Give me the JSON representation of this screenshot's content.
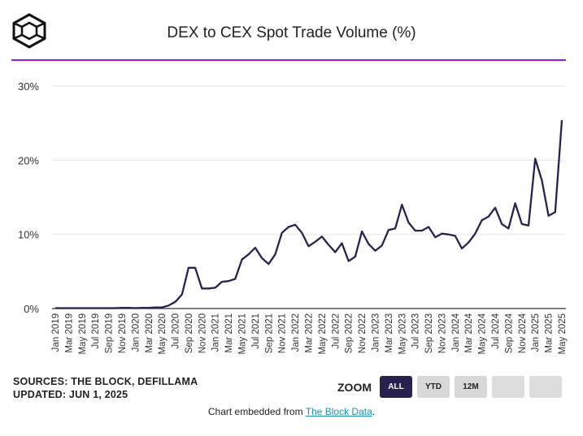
{
  "title": "DEX to CEX Spot Trade Volume (%)",
  "logo": {
    "icon": "the-block-logo-icon"
  },
  "footer": {
    "sources": "SOURCES: THE BLOCK, DEFILLAMA",
    "updated": "UPDATED: JUN 1, 2025",
    "zoom_label": "ZOOM",
    "zoom_buttons": [
      "ALL",
      "YTD",
      "12M",
      "",
      ""
    ],
    "embed_prefix": "Chart embedded from ",
    "embed_link": "The Block Data",
    "embed_suffix": "."
  },
  "colors": {
    "line": "#2a2150",
    "accent": "#9b1ed6",
    "grid": "#e6e6e6"
  },
  "chart_data": {
    "type": "line",
    "title": "DEX to CEX Spot Trade Volume (%)",
    "xlabel": "",
    "ylabel": "",
    "ylim": [
      0,
      30
    ],
    "yticks": [
      0,
      10,
      20,
      30
    ],
    "ytick_labels": [
      "0%",
      "10%",
      "20%",
      "30%"
    ],
    "xtick_labels": [
      "Jan 2019",
      "Mar 2019",
      "May 2019",
      "Jul 2019",
      "Sep 2019",
      "Nov 2019",
      "Jan 2020",
      "Mar 2020",
      "May 2020",
      "Jul 2020",
      "Sep 2020",
      "Nov 2020",
      "Jan 2021",
      "Mar 2021",
      "May 2021",
      "Jul 2021",
      "Sep 2021",
      "Nov 2021",
      "Jan 2022",
      "Mar 2022",
      "May 2022",
      "Jul 2022",
      "Sep 2022",
      "Nov 2022",
      "Jan 2023",
      "Mar 2023",
      "May 2023",
      "Jul 2023",
      "Sep 2023",
      "Nov 2023",
      "Jan 2024",
      "Mar 2024",
      "May 2024",
      "Jul 2024",
      "Sep 2024",
      "Nov 2024",
      "Jan 2025",
      "Mar 2025",
      "May 2025"
    ],
    "series": [
      {
        "name": "DEX to CEX Spot Trade Volume (%)",
        "x": [
          "Jan 2019",
          "Feb 2019",
          "Mar 2019",
          "Apr 2019",
          "May 2019",
          "Jun 2019",
          "Jul 2019",
          "Aug 2019",
          "Sep 2019",
          "Oct 2019",
          "Nov 2019",
          "Dec 2019",
          "Jan 2020",
          "Feb 2020",
          "Mar 2020",
          "Apr 2020",
          "May 2020",
          "Jun 2020",
          "Jul 2020",
          "Aug 2020",
          "Sep 2020",
          "Oct 2020",
          "Nov 2020",
          "Dec 2020",
          "Jan 2021",
          "Feb 2021",
          "Mar 2021",
          "Apr 2021",
          "May 2021",
          "Jun 2021",
          "Jul 2021",
          "Aug 2021",
          "Sep 2021",
          "Oct 2021",
          "Nov 2021",
          "Dec 2021",
          "Jan 2022",
          "Feb 2022",
          "Mar 2022",
          "Apr 2022",
          "May 2022",
          "Jun 2022",
          "Jul 2022",
          "Aug 2022",
          "Sep 2022",
          "Oct 2022",
          "Nov 2022",
          "Dec 2022",
          "Jan 2023",
          "Feb 2023",
          "Mar 2023",
          "Apr 2023",
          "May 2023",
          "Jun 2023",
          "Jul 2023",
          "Aug 2023",
          "Sep 2023",
          "Oct 2023",
          "Nov 2023",
          "Dec 2023",
          "Jan 2024",
          "Feb 2024",
          "Mar 2024",
          "Apr 2024",
          "May 2024",
          "Jun 2024",
          "Jul 2024",
          "Aug 2024",
          "Sep 2024",
          "Oct 2024",
          "Nov 2024",
          "Dec 2024",
          "Jan 2025",
          "Feb 2025",
          "Mar 2025",
          "Apr 2025",
          "May 2025"
        ],
        "values": [
          0.05,
          0.05,
          0.05,
          0.05,
          0.05,
          0.05,
          0.05,
          0.05,
          0.05,
          0.05,
          0.1,
          0.1,
          0.05,
          0.1,
          0.1,
          0.15,
          0.15,
          0.4,
          0.9,
          1.9,
          5.5,
          5.5,
          2.7,
          2.7,
          2.8,
          3.6,
          3.7,
          4.0,
          6.6,
          7.3,
          8.2,
          6.8,
          6.0,
          7.3,
          10.2,
          11.0,
          11.3,
          10.2,
          8.4,
          9.0,
          9.7,
          8.6,
          7.6,
          8.8,
          6.4,
          7.0,
          10.4,
          8.7,
          7.8,
          8.5,
          10.6,
          10.8,
          14.0,
          11.6,
          10.5,
          10.5,
          11.0,
          9.6,
          10.1,
          10.0,
          9.8,
          8.1,
          8.9,
          10.1,
          11.9,
          12.4,
          13.6,
          11.4,
          10.8,
          14.2,
          11.4,
          11.2,
          20.2,
          17.3,
          12.5,
          13.0,
          25.4
        ]
      }
    ]
  }
}
